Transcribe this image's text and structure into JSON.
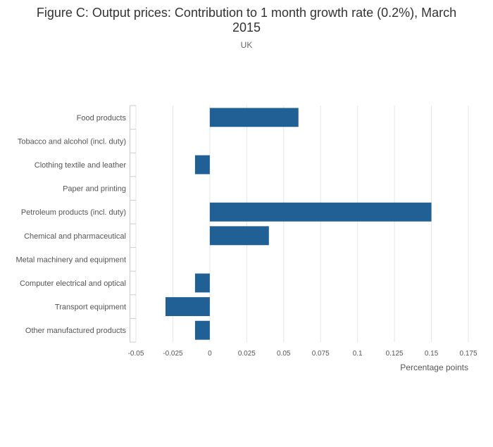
{
  "chart_data": {
    "type": "bar",
    "orientation": "horizontal",
    "title": "Figure C: Output prices: Contribution to 1 month growth rate (0.2%), March 2015",
    "subtitle": "UK",
    "xlabel": "Percentage points",
    "ylabel": "",
    "xlim": [
      -0.05,
      0.175
    ],
    "x_ticks": [
      -0.05,
      -0.025,
      0,
      0.025,
      0.05,
      0.075,
      0.1,
      0.125,
      0.15,
      0.175
    ],
    "x_tick_labels": [
      "-0.05",
      "-0.025",
      "0",
      "0.025",
      "0.05",
      "0.075",
      "0.1",
      "0.125",
      "0.15",
      "0.175"
    ],
    "grid": true,
    "categories": [
      "Food products",
      "Tobacco and alcohol (incl. duty)",
      "Clothing textile and leather",
      "Paper and printing",
      "Petroleum products (incl. duty)",
      "Chemical and pharmaceutical",
      "Metal machinery and equipment",
      "Computer electrical and optical",
      "Transport equipment",
      "Other manufactured products"
    ],
    "values": [
      0.06,
      0,
      -0.01,
      0,
      0.15,
      0.04,
      0,
      -0.01,
      -0.03,
      -0.01
    ],
    "bar_color": "#206095",
    "grid_color": "#e6e6e6",
    "axis_color": "#cccccc"
  }
}
